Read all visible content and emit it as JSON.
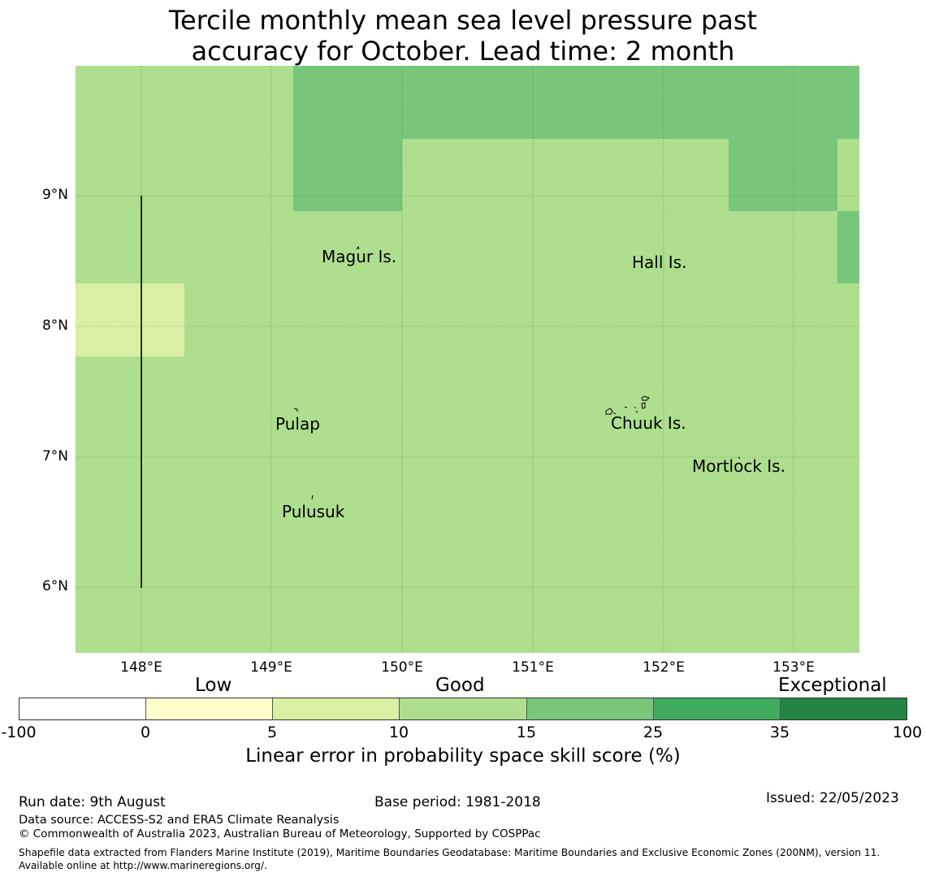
{
  "title": {
    "line1": "Tercile monthly mean sea level pressure past",
    "line2": "accuracy for October. Lead time: 2 month"
  },
  "map": {
    "lon_labels": [
      "148°E",
      "149°E",
      "150°E",
      "151°E",
      "152°E",
      "153°E"
    ],
    "lat_labels": [
      "9°N",
      "8°N",
      "7°N",
      "6°N"
    ],
    "places": [
      "Magur Is.",
      "Hall Is.",
      "Pulap",
      "Chuuk Is.",
      "Mortlock Is.",
      "Pulusuk"
    ],
    "colors": {
      "good_light": "#addf8e",
      "good_mid": "#78c67a",
      "low_good": "#d9f0a2"
    }
  },
  "colorbar": {
    "category_labels": [
      "Low",
      "Good",
      "Exceptional"
    ],
    "ticks": [
      "-100",
      "0",
      "5",
      "10",
      "15",
      "25",
      "35",
      "100"
    ],
    "colors": [
      "#ffffff",
      "#ffffcc",
      "#d9f0a2",
      "#addf8e",
      "#78c67a",
      "#41ab5d",
      "#238443"
    ],
    "label": "Linear error in probability space skill score (%)"
  },
  "footer": {
    "run_date": "Run date: 9th August",
    "base_period": "Base period: 1981-2018",
    "issued": "Issued: 22/05/2023",
    "data_source": "Data source: ACCESS-S2 and ERA5 Climate Reanalysis",
    "copyright": "© Commonwealth of Australia 2023, Australian Bureau of Meteorology, Supported by COSPPac",
    "shapefile": "Shapefile data extracted from Flanders Marine Institute (2019), Maritime Boundaries Geodatabase: Maritime Boundaries and Exclusive Economic Zones (200NM), version 11. Available online at http://www.marineregions.org/."
  }
}
